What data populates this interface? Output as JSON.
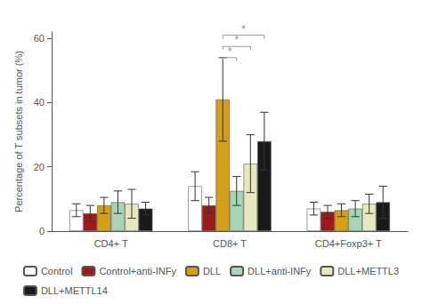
{
  "chart_data": {
    "type": "bar",
    "categories": [
      "CD4+ T",
      "CD8+ T",
      "CD4+Foxp3+ T"
    ],
    "series": [
      {
        "name": "Control",
        "color": "#ffffff",
        "values": [
          6.5,
          14.0,
          7.0
        ],
        "errors": [
          2.0,
          4.5,
          2.0
        ]
      },
      {
        "name": "Control+anti-INFy",
        "color": "#9b1b1b",
        "values": [
          5.5,
          8.0,
          6.0
        ],
        "errors": [
          2.5,
          2.5,
          2.0
        ]
      },
      {
        "name": "DLL",
        "color": "#d4a017",
        "values": [
          8.0,
          41.0,
          6.5
        ],
        "errors": [
          2.5,
          13.0,
          2.0
        ]
      },
      {
        "name": "DLL+anti-INFy",
        "color": "#a8d5b5",
        "values": [
          9.0,
          12.5,
          7.0
        ],
        "errors": [
          3.5,
          4.5,
          2.5
        ]
      },
      {
        "name": "DLL+METTL3",
        "color": "#e8e8c0",
        "values": [
          8.5,
          21.0,
          8.5
        ],
        "errors": [
          4.5,
          9.0,
          3.0
        ]
      },
      {
        "name": "DLL+METTL14",
        "color": "#1a1a1a",
        "values": [
          7.0,
          28.0,
          9.0
        ],
        "errors": [
          2.0,
          9.0,
          5.0
        ]
      }
    ],
    "ylabel": "Percentage of T subsets in tumor (%)",
    "ylim": [
      0,
      62
    ],
    "yticks": [
      0,
      20,
      40,
      60
    ],
    "grid": false,
    "legend": "bottom",
    "annotations": [
      {
        "group": "CD8+ T",
        "from": "DLL",
        "to": "DLL+anti-INFy",
        "y": 54.0,
        "label": "*",
        "color": "#999999"
      },
      {
        "group": "CD8+ T",
        "from": "DLL",
        "to": "DLL+METTL3",
        "y": 57.5,
        "label": "*",
        "color": "#999999"
      },
      {
        "group": "CD8+ T",
        "from": "DLL",
        "to": "DLL+METTL14",
        "y": 61.0,
        "label": "*",
        "color": "#999999"
      }
    ]
  }
}
